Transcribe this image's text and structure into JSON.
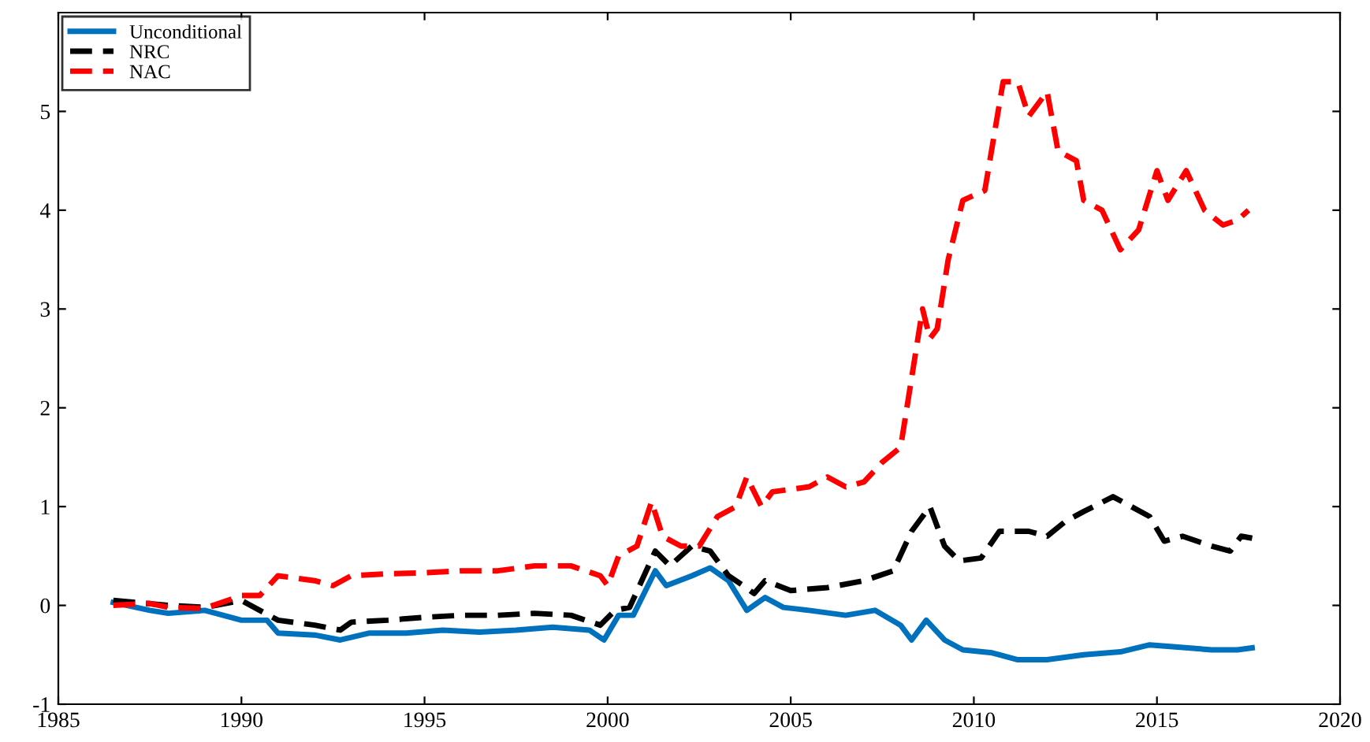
{
  "chart_data": {
    "type": "line",
    "xlim": [
      1985,
      2020
    ],
    "xticks": [
      1985,
      1990,
      1995,
      2000,
      2005,
      2010,
      2015,
      2020
    ],
    "ylim": [
      -1,
      6
    ],
    "yticks": [
      -1,
      0,
      1,
      2,
      3,
      4,
      5
    ],
    "grid": false,
    "legend": "top left",
    "series": [
      {
        "name": "Unconditional",
        "color": "#0072bd",
        "line_style": "solid",
        "x": [
          1986.5,
          1987.5,
          1988,
          1989,
          1990,
          1990.7,
          1991,
          1992,
          1992.7,
          1993.5,
          1994.5,
          1995.5,
          1996.5,
          1997.5,
          1998.5,
          1999.5,
          1999.9,
          2000.3,
          2000.7,
          2001.3,
          2001.6,
          2002.3,
          2002.8,
          2003.3,
          2003.8,
          2004.3,
          2004.8,
          2005.5,
          2006.5,
          2007.3,
          2008,
          2008.3,
          2008.7,
          2009.2,
          2009.7,
          2010.5,
          2011.2,
          2012,
          2013,
          2014,
          2014.8,
          2015.5,
          2016.5,
          2017.2,
          2017.6
        ],
        "values": [
          0.03,
          -0.05,
          -0.08,
          -0.05,
          -0.15,
          -0.15,
          -0.28,
          -0.3,
          -0.35,
          -0.28,
          -0.28,
          -0.25,
          -0.27,
          -0.25,
          -0.22,
          -0.25,
          -0.35,
          -0.1,
          -0.1,
          0.35,
          0.2,
          0.3,
          0.38,
          0.25,
          -0.05,
          0.08,
          -0.02,
          -0.05,
          -0.1,
          -0.05,
          -0.2,
          -0.35,
          -0.15,
          -0.35,
          -0.45,
          -0.48,
          -0.55,
          -0.55,
          -0.5,
          -0.47,
          -0.4,
          -0.42,
          -0.45,
          -0.45,
          -0.43
        ]
      },
      {
        "name": "NRC",
        "color": "#000000",
        "line_style": "dashed",
        "x": [
          1986.5,
          1988,
          1989,
          1990,
          1991,
          1992,
          1992.7,
          1993,
          1994,
          1995,
          1996,
          1997,
          1998,
          1999,
          1999.8,
          2000.2,
          2000.6,
          2001.3,
          2001.7,
          2002.3,
          2002.8,
          2003.3,
          2003.7,
          2004,
          2004.3,
          2005,
          2006,
          2007,
          2007.8,
          2008.3,
          2008.8,
          2009.2,
          2009.6,
          2010.2,
          2010.7,
          2011.5,
          2012,
          2012.5,
          2013,
          2013.8,
          2014.3,
          2014.8,
          2015.2,
          2015.7,
          2016.5,
          2017,
          2017.3,
          2017.6
        ],
        "values": [
          0.05,
          0.0,
          -0.02,
          0.05,
          -0.15,
          -0.2,
          -0.25,
          -0.17,
          -0.15,
          -0.12,
          -0.1,
          -0.1,
          -0.08,
          -0.1,
          -0.2,
          -0.05,
          -0.02,
          0.55,
          0.4,
          0.6,
          0.55,
          0.3,
          0.2,
          0.12,
          0.25,
          0.15,
          0.18,
          0.25,
          0.35,
          0.75,
          1.0,
          0.6,
          0.45,
          0.48,
          0.75,
          0.75,
          0.7,
          0.85,
          0.95,
          1.1,
          1.0,
          0.9,
          0.65,
          0.7,
          0.6,
          0.55,
          0.7,
          0.68
        ]
      },
      {
        "name": "NAC",
        "color": "#ff0000",
        "line_style": "dashed",
        "x": [
          1986.5,
          1987.5,
          1988,
          1989,
          1990,
          1990.5,
          1991,
          1992,
          1992.5,
          1993,
          1994,
          1995,
          1996,
          1997,
          1998,
          1999,
          1999.8,
          2000,
          2000.3,
          2000.8,
          2001.2,
          2001.5,
          2002,
          2002.5,
          2003,
          2003.5,
          2003.8,
          2004.2,
          2004.5,
          2005.5,
          2006,
          2006.5,
          2007,
          2007.5,
          2008,
          2008.3,
          2008.6,
          2008.8,
          2009,
          2009.3,
          2009.7,
          2010.3,
          2010.8,
          2011.2,
          2011.5,
          2012,
          2012.3,
          2012.8,
          2013,
          2013.5,
          2014,
          2014.5,
          2015,
          2015.3,
          2015.8,
          2016.3,
          2016.8,
          2017.2,
          2017.5
        ],
        "values": [
          0,
          0.02,
          -0.02,
          -0.03,
          0.1,
          0.1,
          0.3,
          0.25,
          0.2,
          0.3,
          0.32,
          0.33,
          0.35,
          0.35,
          0.4,
          0.4,
          0.3,
          0.2,
          0.5,
          0.6,
          1.05,
          0.7,
          0.6,
          0.6,
          0.9,
          1.0,
          1.3,
          1.0,
          1.15,
          1.2,
          1.3,
          1.2,
          1.25,
          1.45,
          1.6,
          2.3,
          3.0,
          2.7,
          2.8,
          3.5,
          4.1,
          4.2,
          5.3,
          5.3,
          4.95,
          5.2,
          4.6,
          4.5,
          4.1,
          4.0,
          3.6,
          3.8,
          4.4,
          4.1,
          4.4,
          4.0,
          3.85,
          3.9,
          4.0
        ]
      }
    ]
  }
}
